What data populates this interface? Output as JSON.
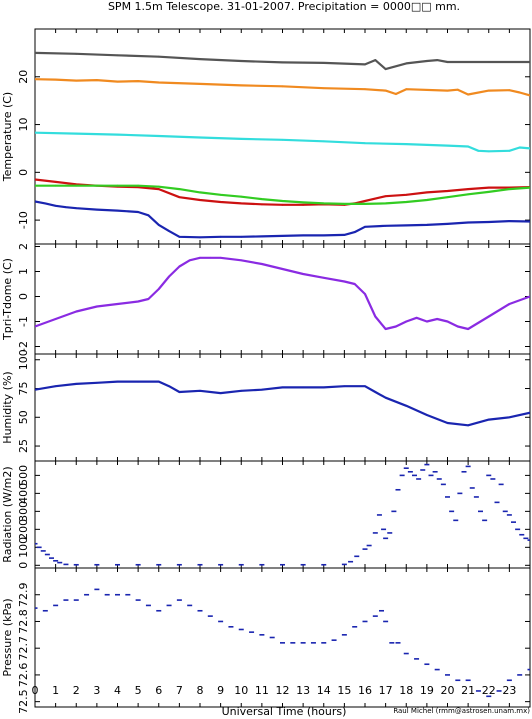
{
  "figure": {
    "title": "SPM 1.5m Telescope. 31-01-2007. Precipitation = 0000□□ mm.",
    "xlabel": "Universal Time (hours)",
    "credit": "Raul Michel (rmm@astrosen.unam.mx)"
  },
  "chart_data": [
    {
      "type": "line",
      "panel": "temperature",
      "ylabel": "Temperature (C)",
      "xlim": [
        0,
        24
      ],
      "ylim": [
        -15,
        30
      ],
      "yticks": [
        -10,
        0,
        10,
        20
      ],
      "ytick_labels": [
        "-10",
        "0",
        "10",
        "20"
      ],
      "series": [
        {
          "color": "#555555",
          "x": [
            0,
            2,
            4,
            6,
            8,
            10,
            12,
            14,
            16,
            16.5,
            17,
            18,
            19,
            19.5,
            20,
            22,
            24
          ],
          "y": [
            25,
            24.8,
            24.5,
            24.2,
            23.7,
            23.3,
            23,
            22.9,
            22.6,
            23.5,
            21.6,
            22.8,
            23.3,
            23.5,
            23.1,
            23.1,
            23.1
          ]
        },
        {
          "color": "#f08a20",
          "x": [
            0,
            1,
            2,
            3,
            4,
            5,
            6,
            8,
            10,
            12,
            14,
            16,
            17,
            17.5,
            18,
            20,
            20.5,
            21,
            22,
            23,
            23.5,
            24
          ],
          "y": [
            19.5,
            19.4,
            19.2,
            19.3,
            19,
            19.1,
            18.8,
            18.5,
            18.2,
            18,
            17.6,
            17.4,
            17.1,
            16.4,
            17.4,
            17.1,
            17.3,
            16.3,
            17.1,
            17.2,
            16.7,
            16.1
          ]
        },
        {
          "color": "#33dddd",
          "x": [
            0,
            2,
            4,
            6,
            8,
            10,
            12,
            14,
            16,
            18,
            20,
            21,
            21.5,
            22,
            23,
            23.5,
            24
          ],
          "y": [
            8.3,
            8.1,
            7.9,
            7.6,
            7.3,
            7,
            6.8,
            6.5,
            6.1,
            5.9,
            5.6,
            5.4,
            4.5,
            4.4,
            4.5,
            5.2,
            5
          ]
        },
        {
          "color": "#cc1111",
          "x": [
            0,
            1,
            2,
            3,
            4,
            5,
            6,
            7,
            8,
            9,
            10,
            11,
            12,
            13,
            14,
            15,
            15.5,
            16,
            16.5,
            17,
            18,
            19,
            20,
            21,
            22,
            23,
            24
          ],
          "y": [
            -1.5,
            -2,
            -2.5,
            -2.8,
            -3,
            -3.1,
            -3.5,
            -5.2,
            -5.8,
            -6.2,
            -6.5,
            -6.7,
            -6.8,
            -6.8,
            -6.7,
            -6.8,
            -6.5,
            -6,
            -5.5,
            -5,
            -4.7,
            -4.2,
            -3.9,
            -3.5,
            -3.2,
            -3.2,
            -3.1
          ]
        },
        {
          "color": "#33cc22",
          "x": [
            0,
            1,
            2,
            3,
            4,
            5,
            6,
            7,
            8,
            9,
            10,
            11,
            12,
            13,
            14,
            15,
            16,
            17,
            18,
            19,
            20,
            21,
            22,
            23,
            24
          ],
          "y": [
            -2.8,
            -2.8,
            -2.8,
            -2.8,
            -2.8,
            -2.8,
            -3,
            -3.5,
            -4.2,
            -4.7,
            -5.1,
            -5.6,
            -6,
            -6.3,
            -6.5,
            -6.6,
            -6.6,
            -6.5,
            -6.2,
            -5.8,
            -5.2,
            -4.6,
            -4.1,
            -3.5,
            -3.2
          ]
        },
        {
          "color": "#1a25b0",
          "x": [
            0,
            0.5,
            1,
            1.5,
            2,
            3,
            4,
            5,
            5.5,
            6,
            6.5,
            7,
            8,
            9,
            10,
            11,
            12,
            13,
            14,
            15,
            15.5,
            16,
            17,
            18,
            19,
            20,
            21,
            22,
            23,
            24
          ],
          "y": [
            -6.1,
            -6.5,
            -7,
            -7.3,
            -7.5,
            -7.8,
            -8,
            -8.3,
            -9,
            -11,
            -12.3,
            -13.5,
            -13.6,
            -13.5,
            -13.5,
            -13.4,
            -13.3,
            -13.2,
            -13.2,
            -13.1,
            -12.5,
            -11.4,
            -11.2,
            -11.1,
            -11,
            -10.8,
            -10.5,
            -10.4,
            -10.2,
            -10.3
          ]
        }
      ]
    },
    {
      "type": "line",
      "panel": "tpri_tdome",
      "ylabel": "Tpri-Tdome (C)",
      "xlim": [
        0,
        24
      ],
      "ylim": [
        -2.3,
        2.1
      ],
      "yticks": [
        -2,
        -1,
        0,
        1,
        2
      ],
      "ytick_labels": [
        "-2",
        "-1",
        "0",
        "1",
        "2"
      ],
      "series": [
        {
          "color": "#8a2be2",
          "x": [
            0,
            1,
            2,
            3,
            4,
            5,
            5.5,
            6,
            6.5,
            7,
            7.5,
            8,
            8.5,
            9,
            10,
            11,
            12,
            13,
            14,
            15,
            15.5,
            16,
            16.5,
            17,
            17.5,
            18,
            18.5,
            19,
            19.5,
            20,
            20.5,
            21,
            22,
            23,
            24
          ],
          "y": [
            -1.2,
            -0.9,
            -0.6,
            -0.4,
            -0.3,
            -0.2,
            -0.1,
            0.3,
            0.8,
            1.2,
            1.45,
            1.55,
            1.55,
            1.55,
            1.45,
            1.3,
            1.1,
            0.9,
            0.75,
            0.6,
            0.5,
            0.1,
            -0.8,
            -1.3,
            -1.2,
            -1.0,
            -0.85,
            -1.0,
            -0.9,
            -1.0,
            -1.2,
            -1.3,
            -0.8,
            -0.3,
            0
          ]
        }
      ]
    },
    {
      "type": "line",
      "panel": "humidity",
      "ylabel": "Humidity (%)",
      "xlim": [
        0,
        24
      ],
      "ylim": [
        12,
        105
      ],
      "yticks": [
        25,
        50,
        75,
        100
      ],
      "ytick_labels": [
        "25",
        "50",
        "75",
        "100"
      ],
      "series": [
        {
          "color": "#1a25b0",
          "x": [
            0,
            1,
            2,
            3,
            4,
            5,
            6,
            6.5,
            7,
            8,
            9,
            10,
            11,
            12,
            13,
            14,
            15,
            16,
            16.5,
            17,
            18,
            19,
            20,
            21,
            22,
            23,
            24
          ],
          "y": [
            74,
            77,
            79,
            80,
            81,
            81,
            81,
            77,
            72,
            73,
            71,
            73,
            74,
            76,
            76,
            76,
            77,
            77,
            72,
            67,
            60,
            52,
            45,
            43,
            48,
            50,
            54
          ]
        }
      ]
    },
    {
      "type": "scatter",
      "panel": "radiation",
      "ylabel": "Radiation (W/m2)",
      "xlim": [
        0,
        24
      ],
      "ylim": [
        -15,
        580
      ],
      "yticks": [
        0,
        100,
        200,
        300,
        400,
        500
      ],
      "ytick_labels": [
        "0",
        "100",
        "200",
        "300",
        "400",
        "500"
      ],
      "series": [
        {
          "color": "#1a25b0",
          "x": [
            0,
            0.2,
            0.4,
            0.6,
            0.8,
            1,
            1.2,
            1.5,
            2,
            3,
            4,
            5,
            6,
            7,
            8,
            9,
            10,
            11,
            12,
            13,
            14,
            15,
            15.3,
            15.6,
            16,
            16.2,
            16.5,
            16.7,
            16.9,
            17,
            17.2,
            17.4,
            17.6,
            17.8,
            18,
            18.2,
            18.4,
            18.6,
            18.8,
            19,
            19.2,
            19.4,
            19.6,
            19.8,
            20,
            20.2,
            20.4,
            20.6,
            20.8,
            21,
            21.2,
            21.4,
            21.6,
            21.8,
            22,
            22.2,
            22.4,
            22.6,
            22.8,
            23,
            23.2,
            23.4,
            23.6,
            23.8,
            24
          ],
          "y": [
            120,
            100,
            80,
            60,
            40,
            25,
            15,
            5,
            3,
            3,
            3,
            3,
            3,
            3,
            3,
            3,
            3,
            3,
            3,
            3,
            3,
            5,
            20,
            50,
            90,
            110,
            180,
            280,
            200,
            150,
            180,
            300,
            420,
            500,
            540,
            520,
            500,
            480,
            530,
            560,
            500,
            520,
            480,
            450,
            380,
            300,
            250,
            400,
            520,
            550,
            430,
            380,
            300,
            250,
            500,
            480,
            350,
            450,
            300,
            280,
            240,
            200,
            170,
            150,
            140
          ]
        }
      ]
    },
    {
      "type": "scatter",
      "panel": "pressure",
      "ylabel": "Pressure (kPa)",
      "xlim": [
        0,
        24
      ],
      "ylim": [
        72.48,
        73.0
      ],
      "yticks": [
        72.5,
        72.6,
        72.7,
        72.8,
        72.9
      ],
      "ytick_labels": [
        "72.5",
        "72.6",
        "72.7",
        "72.8",
        "72.9"
      ],
      "series": [
        {
          "color": "#1a25b0",
          "x": [
            0,
            0.5,
            1,
            1.5,
            2,
            2.5,
            3,
            3.5,
            4,
            4.5,
            5,
            5.5,
            6,
            6.5,
            7,
            7.5,
            8,
            8.5,
            9,
            9.5,
            10,
            10.5,
            11,
            11.5,
            12,
            12.5,
            13,
            13.5,
            14,
            14.5,
            15,
            15.5,
            16,
            16.5,
            16.8,
            17,
            17.3,
            17.6,
            18,
            18.5,
            19,
            19.5,
            20,
            20.5,
            21,
            21.5,
            22,
            22.5,
            23,
            23.5,
            24
          ],
          "y": [
            72.85,
            72.84,
            72.86,
            72.88,
            72.88,
            72.9,
            72.92,
            72.9,
            72.9,
            72.9,
            72.88,
            72.86,
            72.84,
            72.86,
            72.88,
            72.86,
            72.84,
            72.82,
            72.8,
            72.78,
            72.77,
            72.76,
            72.75,
            72.74,
            72.72,
            72.72,
            72.72,
            72.72,
            72.72,
            72.73,
            72.75,
            72.78,
            72.8,
            72.82,
            72.84,
            72.8,
            72.72,
            72.72,
            72.68,
            72.66,
            72.64,
            72.62,
            72.6,
            72.58,
            72.58,
            72.54,
            72.52,
            72.54,
            72.58,
            72.6,
            72.62
          ]
        }
      ]
    }
  ],
  "xaxis": {
    "ticks": [
      0,
      1,
      2,
      3,
      4,
      5,
      6,
      7,
      8,
      9,
      10,
      11,
      12,
      13,
      14,
      15,
      16,
      17,
      18,
      19,
      20,
      21,
      22,
      23
    ],
    "tick_labels": [
      "0",
      "1",
      "2",
      "3",
      "4",
      "5",
      "6",
      "7",
      "8",
      "9",
      "10",
      "11",
      "12",
      "13",
      "14",
      "15",
      "16",
      "17",
      "18",
      "19",
      "20",
      "21",
      "22",
      "23"
    ]
  }
}
